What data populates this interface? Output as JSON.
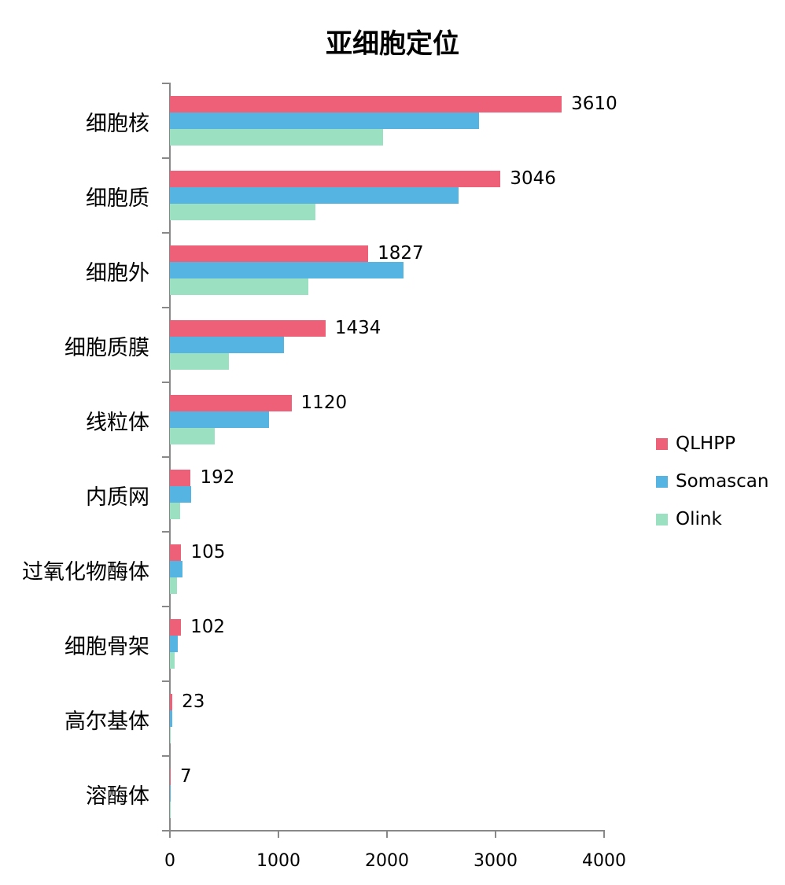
{
  "chart_data": {
    "type": "bar",
    "orientation": "horizontal",
    "title": "亚细胞定位",
    "xlabel": "",
    "ylabel": "",
    "xlim": [
      0,
      4000
    ],
    "xticks": [
      0,
      1000,
      2000,
      3000,
      4000
    ],
    "categories": [
      "细胞核",
      "细胞质",
      "细胞外",
      "细胞质膜",
      "线粒体",
      "内质网",
      "过氧化物酶体",
      "细胞骨架",
      "高尔基体",
      "溶酶体"
    ],
    "series": [
      {
        "name": "QLHPP",
        "color": "#EE6077",
        "values": [
          3610,
          3046,
          1827,
          1434,
          1120,
          192,
          105,
          102,
          23,
          7
        ]
      },
      {
        "name": "Somascan",
        "color": "#56B4E3",
        "values": [
          2850,
          2660,
          2150,
          1050,
          910,
          195,
          118,
          72,
          23,
          2
        ]
      },
      {
        "name": "Olink",
        "color": "#9CE0C2",
        "values": [
          1965,
          1340,
          1275,
          540,
          415,
          96,
          65,
          46,
          3,
          1
        ]
      }
    ],
    "data_labels": [
      "3610",
      "3046",
      "1827",
      "1434",
      "1120",
      "192",
      "105",
      "102",
      "23",
      "7"
    ],
    "legend_position": "right",
    "grid": false
  },
  "title": "亚细胞定位",
  "legend": [
    {
      "name": "QLHPP",
      "color": "#EE6077"
    },
    {
      "name": "Somascan",
      "color": "#56B4E3"
    },
    {
      "name": "Olink",
      "color": "#9CE0C2"
    }
  ],
  "xtick_labels": [
    "0",
    "1000",
    "2000",
    "3000",
    "4000"
  ]
}
